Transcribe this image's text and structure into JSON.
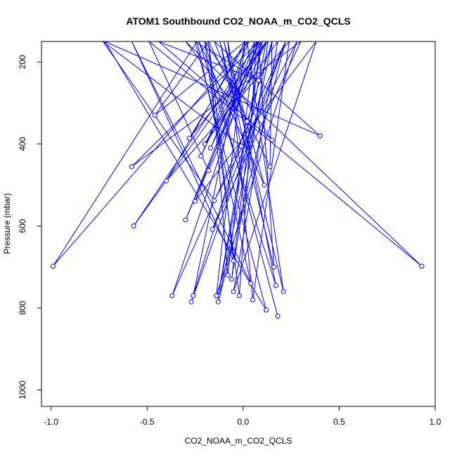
{
  "chart_data": {
    "type": "line",
    "title": "ATOM1 Southbound CO2_NOAA_m_CO2_QCLS",
    "xlabel": "CO2_NOAA_m_CO2_QCLS",
    "ylabel": "Pressure (mbar)",
    "xlim": [
      -1.05,
      1.0
    ],
    "ylim": [
      1040,
      150
    ],
    "y_reversed": true,
    "x_ticks": [
      "-1.0",
      "-0.5",
      "0.0",
      "0.5",
      "1.0"
    ],
    "x_tick_values": [
      -1.0,
      -0.5,
      0.0,
      0.5,
      1.0
    ],
    "y_ticks": [
      "200",
      "400",
      "600",
      "800",
      "1000"
    ],
    "y_tick_values": [
      200,
      400,
      600,
      800,
      1000
    ],
    "grid": false,
    "legend": "none",
    "colors": {
      "series": "#0000ff",
      "axis": "#000000",
      "background": "#ffffff"
    },
    "series": [
      {
        "marker": "open-circle",
        "x": [
          -0.2,
          0.15,
          -0.44,
          0.08,
          -0.25,
          0.12,
          -0.72,
          0.4,
          -0.15,
          0.02,
          -0.3,
          0.93,
          -0.49,
          -0.18,
          0.12,
          -0.57,
          0.08,
          -0.58,
          0.3,
          -0.16,
          0.22,
          -0.27,
          0.15,
          -0.26,
          0.01,
          -0.46,
          -0.18,
          -0.08,
          0.06,
          -0.22,
          0.03,
          -0.99,
          -0.24,
          0.04,
          -0.58,
          -0.05,
          -0.18,
          0.14,
          0.15,
          -0.13,
          0.22,
          -0.37,
          0.08,
          -0.3,
          0.1,
          -0.13,
          0.12,
          -0.2,
          0.18,
          -0.05,
          0.38,
          -0.25,
          0.08,
          0.16,
          -0.12,
          -0.01,
          -0.73,
          -0.15,
          0.28,
          -0.14,
          0.01,
          -0.4,
          0.24,
          0.05,
          -0.08,
          0.17,
          -0.23,
          0.11,
          -0.1,
          0.21,
          0.02,
          -0.28,
          0.13,
          -0.06,
          0.09,
          -0.17,
          0.07,
          -0.02,
          -0.2,
          0.18
        ],
        "y": [
          150,
          390,
          150,
          245,
          150,
          805,
          150,
          380,
          150,
          345,
          150,
          698,
          150,
          465,
          150,
          600,
          150,
          455,
          150,
          608,
          150,
          785,
          150,
          770,
          150,
          330,
          150,
          720,
          150,
          430,
          150,
          698,
          150,
          740,
          150,
          685,
          150,
          455,
          150,
          785,
          150,
          770,
          150,
          585,
          150,
          770,
          150,
          400,
          150,
          760,
          150,
          540,
          150,
          700,
          150,
          405,
          150,
          538,
          150,
          770,
          150,
          490,
          150,
          780,
          150,
          745,
          150,
          500,
          150,
          760,
          150,
          386,
          150,
          730,
          150,
          410,
          150,
          770,
          150,
          820
        ]
      }
    ]
  }
}
